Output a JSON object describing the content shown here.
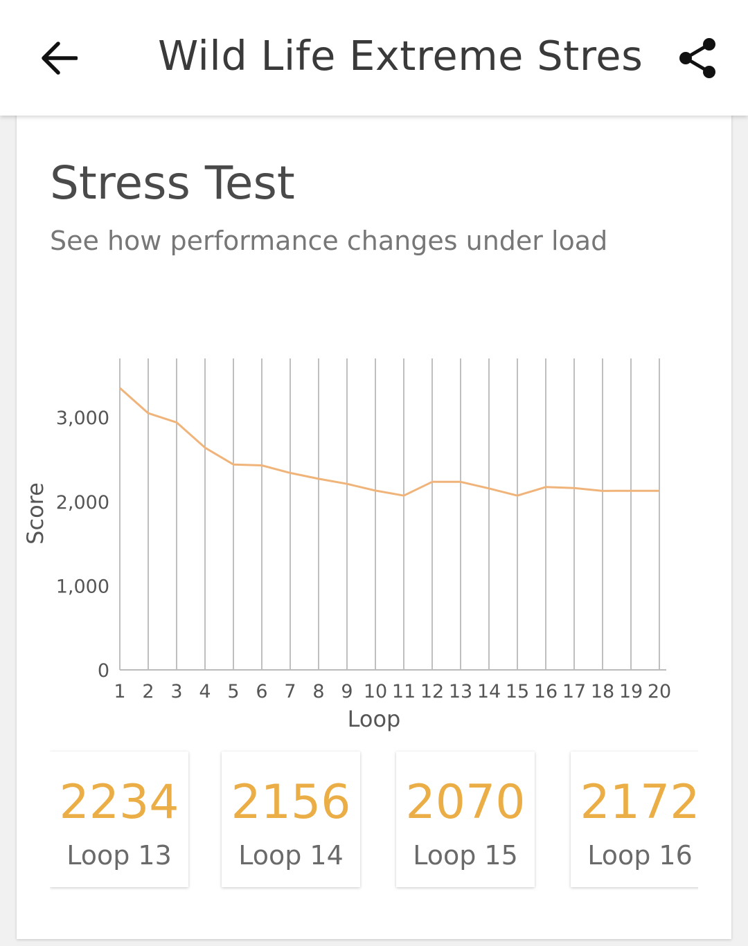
{
  "appbar": {
    "title": "Wild Life Extreme Stress...",
    "back_icon": "arrow-left-icon",
    "share_icon": "share-icon"
  },
  "card": {
    "title": "Stress Test",
    "subtitle": "See how performance changes under load"
  },
  "chart_data": {
    "type": "line",
    "xlabel": "Loop",
    "ylabel": "Score",
    "x": [
      1,
      2,
      3,
      4,
      5,
      6,
      7,
      8,
      9,
      10,
      11,
      12,
      13,
      14,
      15,
      16,
      17,
      18,
      19,
      20
    ],
    "categories": [
      "1",
      "2",
      "3",
      "4",
      "5",
      "6",
      "7",
      "8",
      "9",
      "10",
      "11",
      "12",
      "13",
      "14",
      "15",
      "16",
      "17",
      "18",
      "19",
      "20"
    ],
    "series": [
      {
        "values": [
          3350,
          3050,
          2940,
          2640,
          2440,
          2430,
          2340,
          2270,
          2210,
          2130,
          2070,
          2234,
          2234,
          2156,
          2070,
          2172,
          2160,
          2126,
          2128,
          2128
        ]
      }
    ],
    "yticks": [
      "0",
      "1,000",
      "2,000",
      "3,000"
    ],
    "ylim": [
      0,
      3700
    ],
    "grid": "vertical",
    "line_color": "#f0b47a"
  },
  "tiles": [
    {
      "value": "2234",
      "label": "Loop 13"
    },
    {
      "value": "2156",
      "label": "Loop 14"
    },
    {
      "value": "2070",
      "label": "Loop 15"
    },
    {
      "value": "2172",
      "label": "Loop 16"
    }
  ],
  "colors": {
    "accent": "#ebae46",
    "line": "#f0b47a"
  }
}
